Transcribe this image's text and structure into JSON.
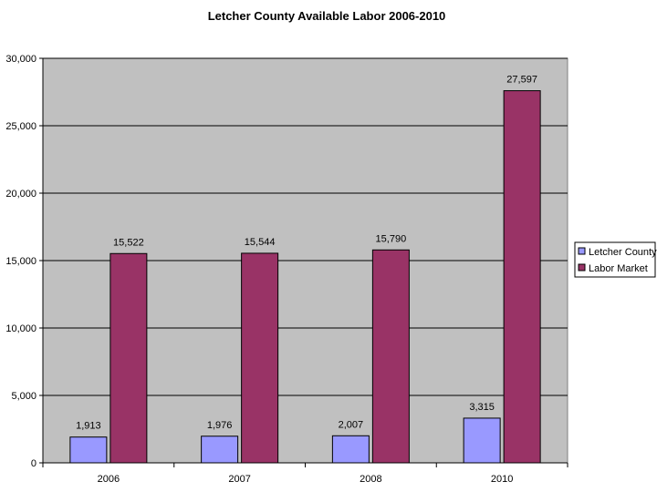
{
  "chart_data": {
    "type": "bar",
    "title": "Letcher County Available Labor 2006-2010",
    "xlabel": "",
    "ylabel": "",
    "categories": [
      "2006",
      "2007",
      "2008",
      "2010"
    ],
    "series": [
      {
        "name": "Letcher County",
        "values": [
          1913,
          1976,
          2007,
          3315
        ],
        "labels": [
          "1,913",
          "1,976",
          "2,007",
          "3,315"
        ],
        "color": "#9999ff"
      },
      {
        "name": "Labor Market",
        "values": [
          15522,
          15544,
          15790,
          27597
        ],
        "labels": [
          "15,522",
          "15,544",
          "15,790",
          "27,597"
        ],
        "color": "#993366"
      }
    ],
    "ylim": [
      0,
      30000
    ],
    "yticks": [
      0,
      5000,
      10000,
      15000,
      20000,
      25000,
      30000
    ],
    "ytick_labels": [
      "0",
      "5,000",
      "10,000",
      "15,000",
      "20,000",
      "25,000",
      "30,000"
    ],
    "grid": true,
    "plot_background": "#c0c0c0",
    "legend_position": "right"
  }
}
